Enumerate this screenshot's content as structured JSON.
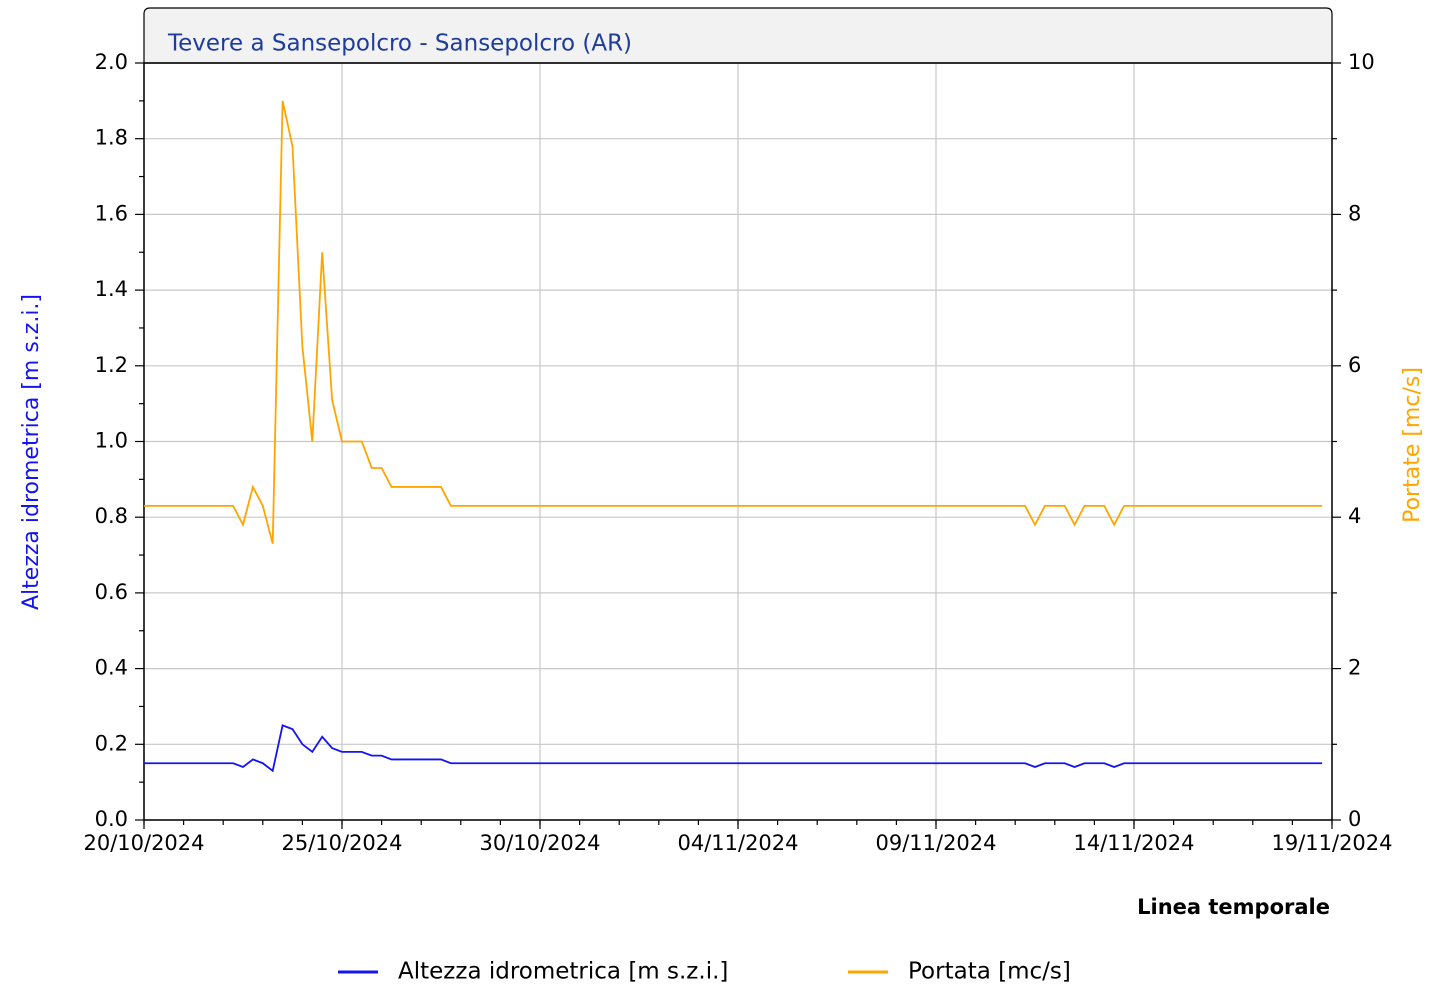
{
  "chart_data": {
    "type": "line",
    "title": "Tevere a Sansepolcro - Sansepolcro (AR)",
    "xlabel": "Linea temporale",
    "ylabel": "Altezza idrometrica [m s.z.i.]",
    "y2label": "Portate [mc/s]",
    "x": [
      "20/10/2024 00:00",
      "22/10/2024 06:00",
      "22/10/2024 12:00",
      "22/10/2024 18:00",
      "23/10/2024 00:00",
      "23/10/2024 06:00",
      "23/10/2024 12:00",
      "23/10/2024 18:00",
      "24/10/2024 00:00",
      "24/10/2024 06:00",
      "24/10/2024 12:00",
      "24/10/2024 18:00",
      "25/10/2024 00:00",
      "25/10/2024 12:00",
      "25/10/2024 18:00",
      "26/10/2024 00:00",
      "26/10/2024 06:00",
      "27/10/2024 12:00",
      "27/10/2024 18:00",
      "11/11/2024 06:00",
      "11/11/2024 12:00",
      "11/11/2024 18:00",
      "12/11/2024 06:00",
      "12/11/2024 12:00",
      "12/11/2024 18:00",
      "13/11/2024 06:00",
      "13/11/2024 12:00",
      "13/11/2024 18:00",
      "18/11/2024 18:00"
    ],
    "series": [
      {
        "name": "Altezza idrometrica [m s.z.i.]",
        "color": "#1414f0",
        "axis": "y",
        "values": [
          0.15,
          0.15,
          0.14,
          0.16,
          0.15,
          0.13,
          0.25,
          0.24,
          0.2,
          0.18,
          0.22,
          0.19,
          0.18,
          0.18,
          0.17,
          0.17,
          0.16,
          0.16,
          0.15,
          0.15,
          0.14,
          0.15,
          0.15,
          0.14,
          0.15,
          0.15,
          0.14,
          0.15,
          0.15
        ]
      },
      {
        "name": "Portata [mc/s]",
        "color": "#ffa500",
        "axis": "y2",
        "values": [
          4.15,
          4.15,
          3.9,
          4.4,
          4.15,
          3.65,
          9.5,
          8.9,
          6.25,
          5.0,
          7.5,
          5.55,
          5.0,
          5.0,
          4.65,
          4.65,
          4.4,
          4.4,
          4.15,
          4.15,
          3.9,
          4.15,
          4.15,
          3.9,
          4.15,
          4.15,
          3.9,
          4.15,
          4.15
        ]
      }
    ],
    "xlim": [
      "20/10/2024",
      "19/11/2024"
    ],
    "xticks": [
      "20/10/2024",
      "25/10/2024",
      "30/10/2024",
      "04/11/2024",
      "09/11/2024",
      "14/11/2024",
      "19/11/2024"
    ],
    "ylim": [
      0,
      2
    ],
    "yticks": [
      {
        "value": 0,
        "label": "0.0"
      },
      0.2,
      0.4,
      0.6,
      0.8,
      {
        "value": 1,
        "label": "1.0"
      },
      1.2,
      1.4,
      1.6,
      1.8,
      {
        "value": 2,
        "label": "2.0"
      }
    ],
    "y2lim": [
      0,
      10
    ],
    "y2ticks": [
      0,
      2,
      4,
      6,
      8,
      10
    ],
    "grid": true
  }
}
